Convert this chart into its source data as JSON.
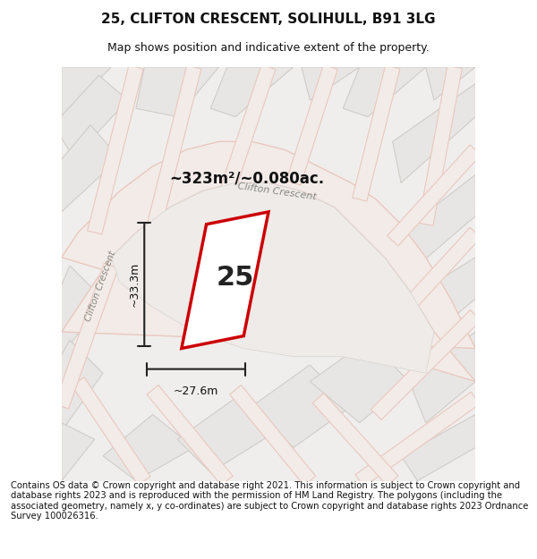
{
  "title": "25, CLIFTON CRESCENT, SOLIHULL, B91 3LG",
  "subtitle": "Map shows position and indicative extent of the property.",
  "footer": "Contains OS data © Crown copyright and database right 2021. This information is subject to Crown copyright and database rights 2023 and is reproduced with the permission of HM Land Registry. The polygons (including the associated geometry, namely x, y co-ordinates) are subject to Crown copyright and database rights 2023 Ordnance Survey 100026316.",
  "area_label": "~323m²/~0.080ac.",
  "street_label": "Clifton Crescent",
  "street_label2": "Clifton Crescent",
  "property_number": "25",
  "dim_width": "~27.6m",
  "dim_height": "~33.3m",
  "map_bg": "#f5f5f5",
  "road_color": "#f0d0c8",
  "road_outline": "#e8b8a8",
  "plot_color": "#ffffff",
  "plot_edge_color": "#cc0000",
  "building_color": "#e8e8e8",
  "building_edge": "#cccccc",
  "title_fontsize": 11,
  "subtitle_fontsize": 9,
  "footer_fontsize": 7.2
}
